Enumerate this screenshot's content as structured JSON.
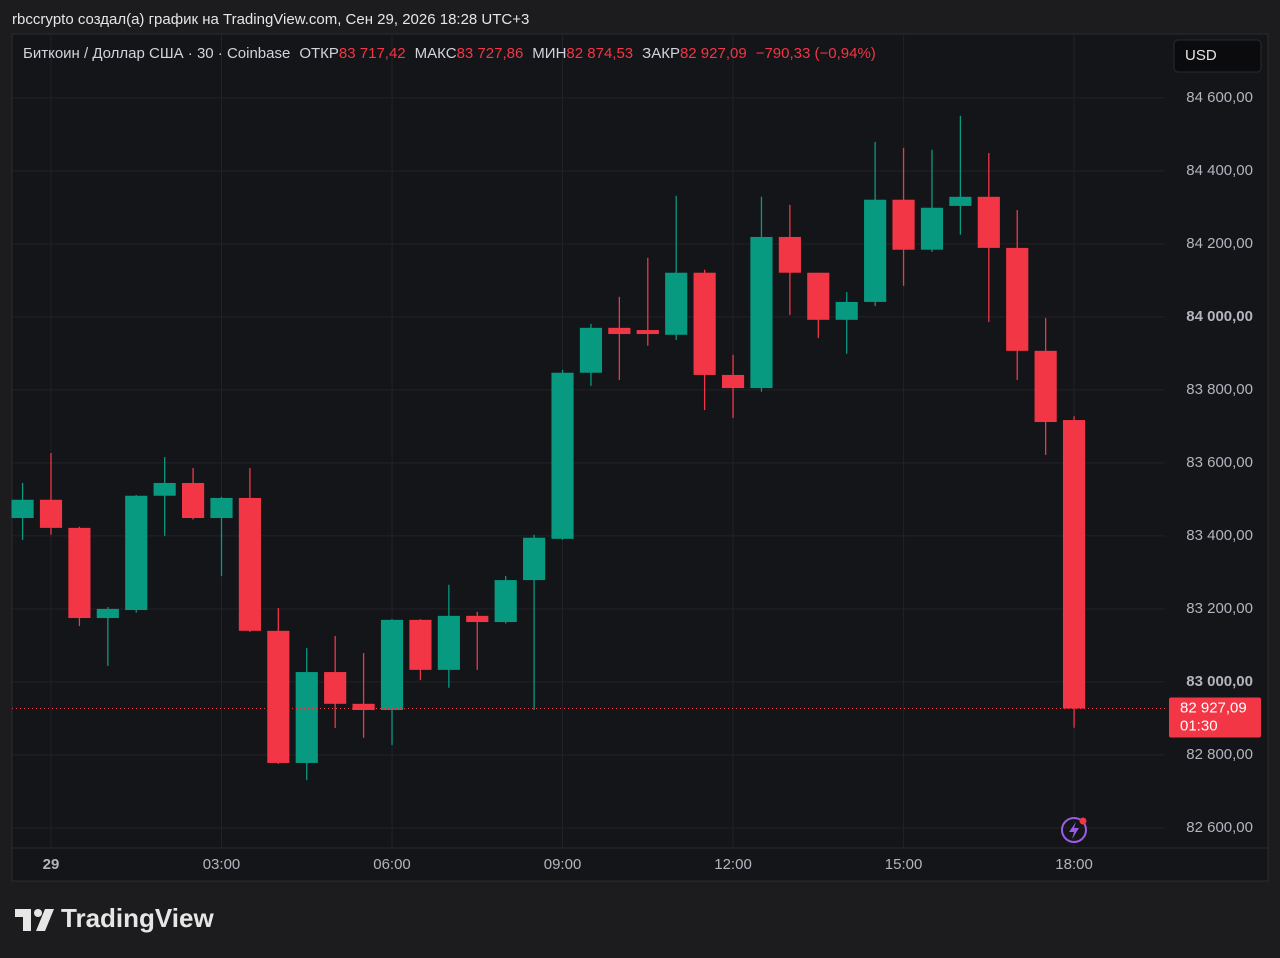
{
  "header": {
    "caption": "rbccrypto создал(а) график на TradingView.com, Сен 29, 2026 18:28 UTC+3"
  },
  "chart_data": {
    "type": "candlestick",
    "symbol": "Биткоин / Доллар США · 30 · Coinbase",
    "ohlc_legend": [
      {
        "label": "ОТКР",
        "value": "83 717,42"
      },
      {
        "label": "МАКС",
        "value": "83 727,86"
      },
      {
        "label": "МИН",
        "value": "82 874,53"
      },
      {
        "label": "ЗАКР",
        "value": "82 927,09"
      }
    ],
    "change": "−790,33 (−0,94%)",
    "currency": "USD",
    "x": [
      -0.5,
      0,
      0.5,
      1,
      1.5,
      2,
      2.5,
      3,
      3.5,
      4,
      4.5,
      5,
      5.5,
      6,
      6.5,
      7,
      7.5,
      8,
      8.5,
      9,
      9.5,
      10,
      10.5,
      11,
      11.5,
      12,
      12.5,
      13,
      13.5,
      14,
      14.5,
      15,
      15.5,
      16,
      16.5,
      17,
      17.5,
      18
    ],
    "open": [
      83449,
      83499,
      83422,
      83175,
      83197,
      83510,
      83545,
      83449,
      83504,
      83140,
      82778,
      83027,
      82940,
      82923,
      83170,
      83033,
      83181,
      83164,
      83279,
      83392,
      83847,
      83970,
      83964,
      83951,
      84121,
      83841,
      83805,
      84219,
      84121,
      83992,
      84041,
      84321,
      84184,
      84304,
      84329,
      84189,
      83907,
      83717.42
    ],
    "high": [
      83545,
      83627,
      83425,
      83205,
      83512,
      83616,
      83586,
      83507,
      83586,
      83203,
      83093,
      83126,
      83079,
      83172,
      83172,
      83266,
      83192,
      83290,
      83403,
      83855,
      83981,
      84055,
      84162,
      84332,
      84129,
      83896,
      84329,
      84307,
      84121,
      84068,
      84479,
      84463,
      84458,
      84551,
      84449,
      84293,
      83997,
      83727.86
    ],
    "low": [
      83389,
      83403,
      83153,
      83044,
      83190,
      83400,
      83445,
      83290,
      83137,
      82775,
      82731,
      82874,
      82847,
      82827,
      83005,
      82984,
      83033,
      83160,
      82923,
      83389,
      83811,
      83827,
      83921,
      83937,
      83745,
      83723,
      83795,
      84005,
      83942,
      83899,
      84030,
      84085,
      84178,
      84225,
      83986,
      83827,
      83622,
      82874.53
    ],
    "close": [
      83499,
      83422,
      83175,
      83200,
      83510,
      83545,
      83449,
      83504,
      83140,
      82778,
      83027,
      82940,
      82923,
      83170,
      83033,
      83181,
      83164,
      83279,
      83395,
      83847,
      83970,
      83953,
      83953,
      84121,
      83841,
      83805,
      84219,
      84121,
      83992,
      84041,
      84321,
      84184,
      84299,
      84329,
      84189,
      83907,
      83712,
      82927.09
    ],
    "up_color": "#089981",
    "down_color": "#f23645",
    "xlim": [
      -0.686,
      19.6
    ],
    "xticks": [
      {
        "value": 0,
        "label": "29"
      },
      {
        "value": 3,
        "label": "03:00"
      },
      {
        "value": 6,
        "label": "06:00"
      },
      {
        "value": 9,
        "label": "09:00"
      },
      {
        "value": 12,
        "label": "12:00"
      },
      {
        "value": 15,
        "label": "15:00"
      },
      {
        "value": 18,
        "label": "18:00"
      }
    ],
    "ylim": [
      82545,
      84775
    ],
    "yticks": [
      {
        "value": 82600,
        "label": "82 600,00"
      },
      {
        "value": 82800,
        "label": "82 800,00"
      },
      {
        "value": 83000,
        "label": "83 000,00"
      },
      {
        "value": 83200,
        "label": "83 200,00"
      },
      {
        "value": 83400,
        "label": "83 400,00"
      },
      {
        "value": 83600,
        "label": "83 600,00"
      },
      {
        "value": 83800,
        "label": "83 800,00"
      },
      {
        "value": 84000,
        "label": "84 000,00"
      },
      {
        "value": 84200,
        "label": "84 200,00"
      },
      {
        "value": 84400,
        "label": "84 400,00"
      },
      {
        "value": 84600,
        "label": "84 600,00"
      }
    ],
    "grid": true,
    "last_price": {
      "label": "82 927,09",
      "countdown": "01:30"
    }
  },
  "footer": {
    "logo": "TradingView"
  }
}
